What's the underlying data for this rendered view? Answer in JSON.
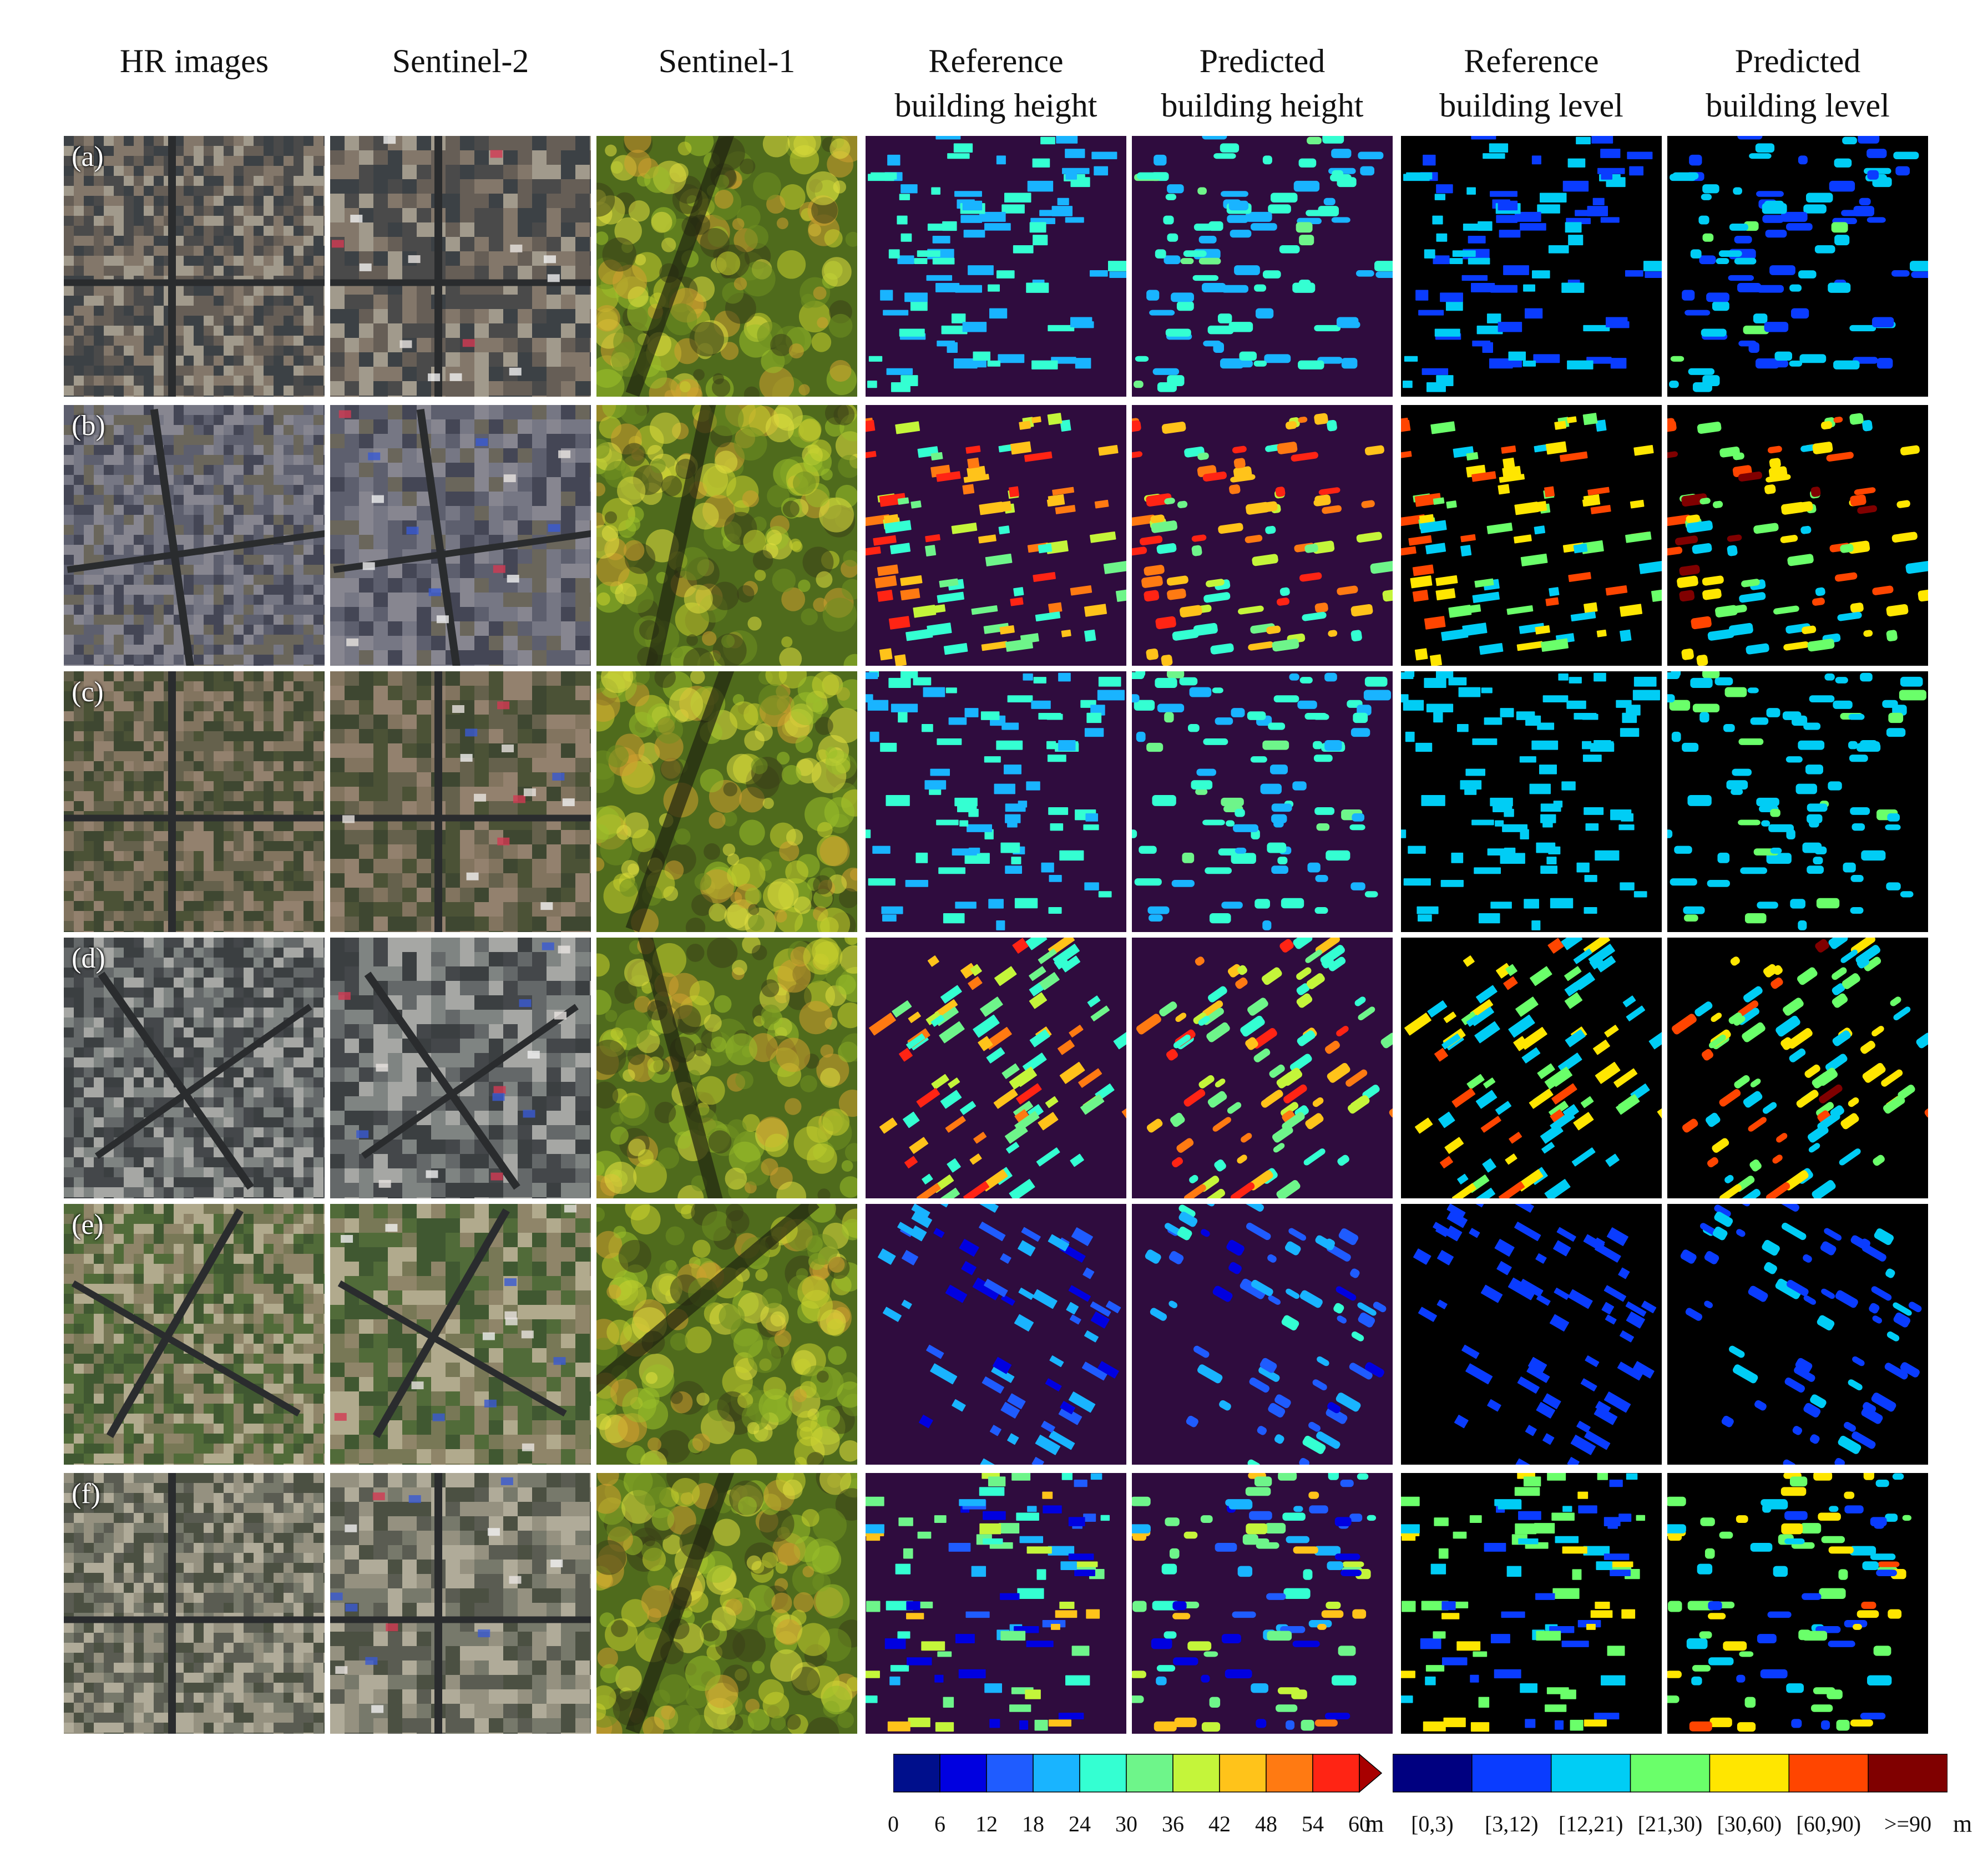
{
  "columns": [
    {
      "id": "hr",
      "lines": [
        "HR images"
      ]
    },
    {
      "id": "s2",
      "lines": [
        "Sentinel-2"
      ]
    },
    {
      "id": "s1",
      "lines": [
        "Sentinel-1"
      ]
    },
    {
      "id": "ref-height",
      "lines": [
        "Reference",
        "building height"
      ]
    },
    {
      "id": "pred-height",
      "lines": [
        "Predicted",
        "building height"
      ]
    },
    {
      "id": "ref-level",
      "lines": [
        "Reference",
        "building level"
      ]
    },
    {
      "id": "pred-level",
      "lines": [
        "Predicted",
        "building level"
      ]
    }
  ],
  "rows": [
    "(a)",
    "(b)",
    "(c)",
    "(d)",
    "(e)",
    "(f)"
  ],
  "height_colorbar": {
    "ticks": [
      "0",
      "6",
      "12",
      "18",
      "24",
      "30",
      "36",
      "42",
      "48",
      "54",
      "60"
    ],
    "unit": "m",
    "colors": [
      "#000f8c",
      "#0000e0",
      "#1f5cff",
      "#19b4ff",
      "#34ffd2",
      "#6ef58a",
      "#c4f53a",
      "#ffc31a",
      "#ff7a12",
      "#ff2414"
    ],
    "overflow_color": "#a80000"
  },
  "level_colorbar": {
    "classes": [
      "[0,3)",
      "[3,12)",
      "[12,21)",
      "[21,30)",
      "[30,60)",
      "[60,90)",
      ">=90"
    ],
    "unit": "m",
    "colors": [
      "#000080",
      "#0a3cff",
      "#00cdf5",
      "#6aff6a",
      "#ffe600",
      "#ff4500",
      "#800000"
    ]
  },
  "palette": {
    "height_background": "#2f0c3e",
    "level_background": "#000000"
  }
}
